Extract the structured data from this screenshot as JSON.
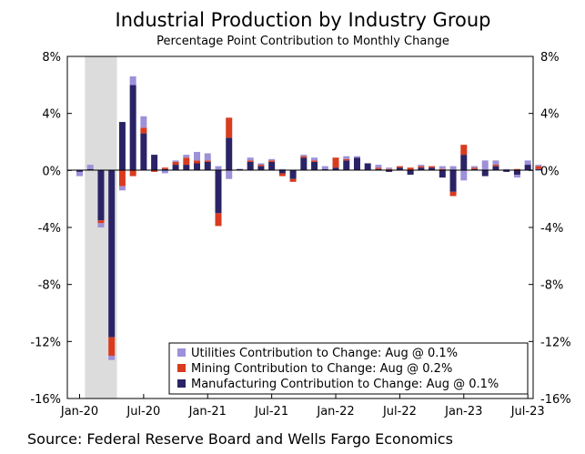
{
  "chart_data": {
    "type": "bar",
    "stacked": true,
    "title": "Industrial Production by Industry Group",
    "subtitle": "Percentage Point Contribution to Monthly Change",
    "source": "Source: Federal Reserve Board and Wells Fargo Economics",
    "ylim": [
      -16,
      8
    ],
    "yticks": [
      "8%",
      "4%",
      "0%",
      "-4%",
      "-8%",
      "-12%",
      "-16%"
    ],
    "ytick_values": [
      8,
      4,
      0,
      -4,
      -8,
      -12,
      -16
    ],
    "xtick_labels": [
      "Jan-20",
      "Jul-20",
      "Jan-21",
      "Jul-21",
      "Jan-22",
      "Jul-22",
      "Jan-23",
      "Jul-23"
    ],
    "xtick_months": [
      "2020-01",
      "2020-07",
      "2021-01",
      "2021-07",
      "2022-01",
      "2022-07",
      "2023-01",
      "2023-07"
    ],
    "categories": [
      "2020-01",
      "2020-02",
      "2020-03",
      "2020-04",
      "2020-05",
      "2020-06",
      "2020-07",
      "2020-08",
      "2020-09",
      "2020-10",
      "2020-11",
      "2020-12",
      "2021-01",
      "2021-02",
      "2021-03",
      "2021-04",
      "2021-05",
      "2021-06",
      "2021-07",
      "2021-08",
      "2021-09",
      "2021-10",
      "2021-11",
      "2021-12",
      "2022-01",
      "2022-02",
      "2022-03",
      "2022-04",
      "2022-05",
      "2022-06",
      "2022-07",
      "2022-08",
      "2022-09",
      "2022-10",
      "2022-11",
      "2022-12",
      "2023-01",
      "2023-02",
      "2023-03",
      "2023-04",
      "2023-05",
      "2023-06",
      "2023-07",
      "2023-08"
    ],
    "shaded_region": [
      "2020-02",
      "2020-04"
    ],
    "grid": false,
    "legend_position": "bottom-right",
    "series": [
      {
        "name": "Manufacturing Contribution to Change: Aug @ 0.1%",
        "color": "#2a2466",
        "values": [
          -0.1,
          0.1,
          -3.5,
          -11.7,
          3.4,
          6.0,
          2.6,
          1.1,
          0.1,
          0.4,
          0.4,
          0.5,
          0.6,
          -3.0,
          2.3,
          0.1,
          0.6,
          0.3,
          0.6,
          -0.2,
          -0.6,
          0.9,
          0.6,
          0.1,
          0.2,
          0.7,
          0.9,
          0.5,
          0.1,
          -0.1,
          0.2,
          -0.3,
          0.2,
          0.2,
          -0.5,
          -1.5,
          1.1,
          0.1,
          -0.4,
          0.3,
          -0.1,
          -0.3,
          0.4,
          0.1
        ]
      },
      {
        "name": "Mining Contribution to Change: Aug @ 0.2%",
        "color": "#d93b1f",
        "values": [
          0.0,
          0.0,
          -0.2,
          -1.3,
          -1.1,
          -0.4,
          0.4,
          -0.1,
          0.1,
          0.2,
          0.5,
          0.2,
          0.1,
          -0.9,
          1.4,
          0.0,
          0.1,
          0.1,
          0.1,
          -0.2,
          -0.2,
          0.1,
          0.1,
          0.0,
          0.7,
          0.1,
          0.0,
          0.0,
          0.1,
          0.1,
          0.1,
          0.2,
          0.1,
          0.1,
          0.1,
          -0.3,
          0.7,
          0.1,
          0.0,
          0.1,
          0.0,
          0.1,
          0.0,
          0.2
        ]
      },
      {
        "name": "Utilities Contribution to Change: Aug @ 0.1%",
        "color": "#9d91d9",
        "values": [
          -0.3,
          0.3,
          -0.3,
          -0.3,
          -0.3,
          0.6,
          0.8,
          0.0,
          -0.2,
          0.1,
          0.2,
          0.6,
          0.5,
          0.3,
          -0.6,
          0.0,
          0.2,
          0.1,
          0.1,
          0.1,
          0.0,
          0.1,
          0.2,
          0.2,
          0.0,
          0.2,
          0.1,
          0.0,
          0.2,
          0.1,
          0.0,
          0.0,
          0.1,
          0.0,
          0.2,
          0.3,
          -0.7,
          0.1,
          0.7,
          0.3,
          0.1,
          -0.2,
          0.3,
          0.1
        ]
      }
    ]
  }
}
